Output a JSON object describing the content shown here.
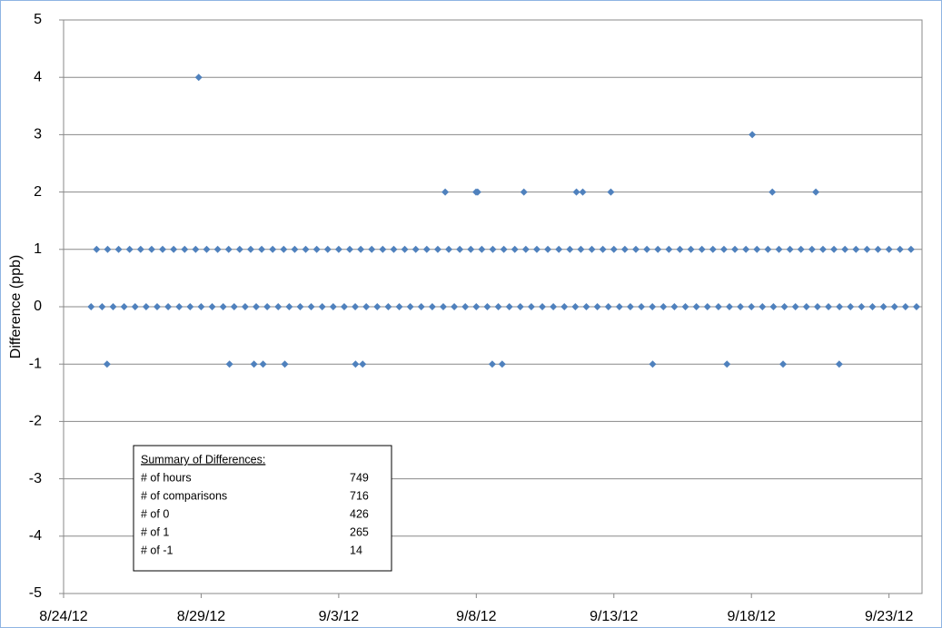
{
  "chart_data": {
    "type": "scatter",
    "y_label": "Difference (ppb)",
    "color": "#4f81bd",
    "grid": true,
    "xlim": [
      41145,
      41176.2
    ],
    "ylim": [
      -5,
      5
    ],
    "xticks": [
      {
        "value": 41145,
        "label": "8/24/12"
      },
      {
        "value": 41150,
        "label": "8/29/12"
      },
      {
        "value": 41155,
        "label": "9/3/12"
      },
      {
        "value": 41160,
        "label": "9/8/12"
      },
      {
        "value": 41165,
        "label": "9/13/12"
      },
      {
        "value": 41170,
        "label": "9/18/12"
      },
      {
        "value": 41175,
        "label": "9/23/12"
      }
    ],
    "yticks": [
      -5,
      -4,
      -3,
      -2,
      -1,
      0,
      1,
      2,
      3,
      4,
      5
    ],
    "x": [
      41146,
      41146.4,
      41146.8,
      41147.2,
      41147.6,
      41148,
      41148.4,
      41148.8,
      41149.2,
      41149.6,
      41150,
      41150.4,
      41150.8,
      41151.2,
      41151.6,
      41152,
      41152.4,
      41152.8,
      41153.2,
      41153.6,
      41154,
      41154.4,
      41154.8,
      41155.2,
      41155.6,
      41156,
      41156.4,
      41156.8,
      41157.2,
      41157.6,
      41158,
      41158.4,
      41158.8,
      41159.2,
      41159.6,
      41160,
      41160.4,
      41160.8,
      41161.2,
      41161.6,
      41162,
      41162.4,
      41162.8,
      41163.2,
      41163.6,
      41164,
      41164.4,
      41164.8,
      41165.2,
      41165.6,
      41166,
      41166.4,
      41166.8,
      41167.2,
      41167.6,
      41168,
      41168.4,
      41168.8,
      41169.2,
      41169.6,
      41170,
      41170.4,
      41170.8,
      41171.2,
      41171.6,
      41172,
      41172.4,
      41172.8,
      41173.2,
      41173.6,
      41174,
      41174.4,
      41174.8,
      41175.2,
      41175.6,
      41176,
      41146.2,
      41146.6,
      41147,
      41147.4,
      41147.8,
      41148.2,
      41148.6,
      41149,
      41149.4,
      41149.8,
      41150.2,
      41150.6,
      41151,
      41151.4,
      41151.8,
      41152.2,
      41152.6,
      41153,
      41153.4,
      41153.8,
      41154.2,
      41154.6,
      41155,
      41155.4,
      41155.8,
      41156.2,
      41156.6,
      41157,
      41157.4,
      41157.8,
      41158.2,
      41158.6,
      41159,
      41159.4,
      41159.8,
      41160.2,
      41160.6,
      41161,
      41161.4,
      41161.8,
      41162.2,
      41162.6,
      41163,
      41163.4,
      41163.8,
      41164.2,
      41164.6,
      41165,
      41165.4,
      41165.8,
      41166.2,
      41166.6,
      41167,
      41167.4,
      41167.8,
      41168.2,
      41168.6,
      41169,
      41169.4,
      41169.8,
      41170.2,
      41170.6,
      41171,
      41171.4,
      41171.8,
      41172.2,
      41172.6,
      41173,
      41173.4,
      41173.8,
      41174.2,
      41174.6,
      41175,
      41175.4,
      41175.8,
      41149.91,
      41146.58,
      41151.03,
      41151.92,
      41152.25,
      41153.04,
      41155.61,
      41155.87,
      41158.87,
      41159.99,
      41160.05,
      41160.58,
      41160.94,
      41161.73,
      41163.64,
      41163.87,
      41164.89,
      41166.41,
      41169.11,
      41170.03,
      41170.76,
      41171.15,
      41172.34,
      41173.19
    ],
    "values": [
      0,
      0,
      0,
      0,
      0,
      0,
      0,
      0,
      0,
      0,
      0,
      0,
      0,
      0,
      0,
      0,
      0,
      0,
      0,
      0,
      0,
      0,
      0,
      0,
      0,
      0,
      0,
      0,
      0,
      0,
      0,
      0,
      0,
      0,
      0,
      0,
      0,
      0,
      0,
      0,
      0,
      0,
      0,
      0,
      0,
      0,
      0,
      0,
      0,
      0,
      0,
      0,
      0,
      0,
      0,
      0,
      0,
      0,
      0,
      0,
      0,
      0,
      0,
      0,
      0,
      0,
      0,
      0,
      0,
      0,
      0,
      0,
      0,
      0,
      0,
      0,
      1,
      1,
      1,
      1,
      1,
      1,
      1,
      1,
      1,
      1,
      1,
      1,
      1,
      1,
      1,
      1,
      1,
      1,
      1,
      1,
      1,
      1,
      1,
      1,
      1,
      1,
      1,
      1,
      1,
      1,
      1,
      1,
      1,
      1,
      1,
      1,
      1,
      1,
      1,
      1,
      1,
      1,
      1,
      1,
      1,
      1,
      1,
      1,
      1,
      1,
      1,
      1,
      1,
      1,
      1,
      1,
      1,
      1,
      1,
      1,
      1,
      1,
      1,
      1,
      1,
      1,
      1,
      1,
      1,
      1,
      1,
      1,
      1,
      1,
      1,
      4,
      -1,
      -1,
      -1,
      -1,
      -1,
      -1,
      -1,
      2,
      2,
      2,
      -1,
      -1,
      2,
      2,
      2,
      2,
      -1,
      -1,
      3,
      2,
      -1,
      2,
      -1
    ]
  },
  "summary": {
    "title": "Summary of Differences:",
    "rows": [
      [
        "# of hours",
        749
      ],
      [
        "# of comparisons",
        716
      ],
      [
        "# of 0",
        426
      ],
      [
        "# of 1",
        265
      ],
      [
        "# of -1",
        14
      ]
    ]
  }
}
